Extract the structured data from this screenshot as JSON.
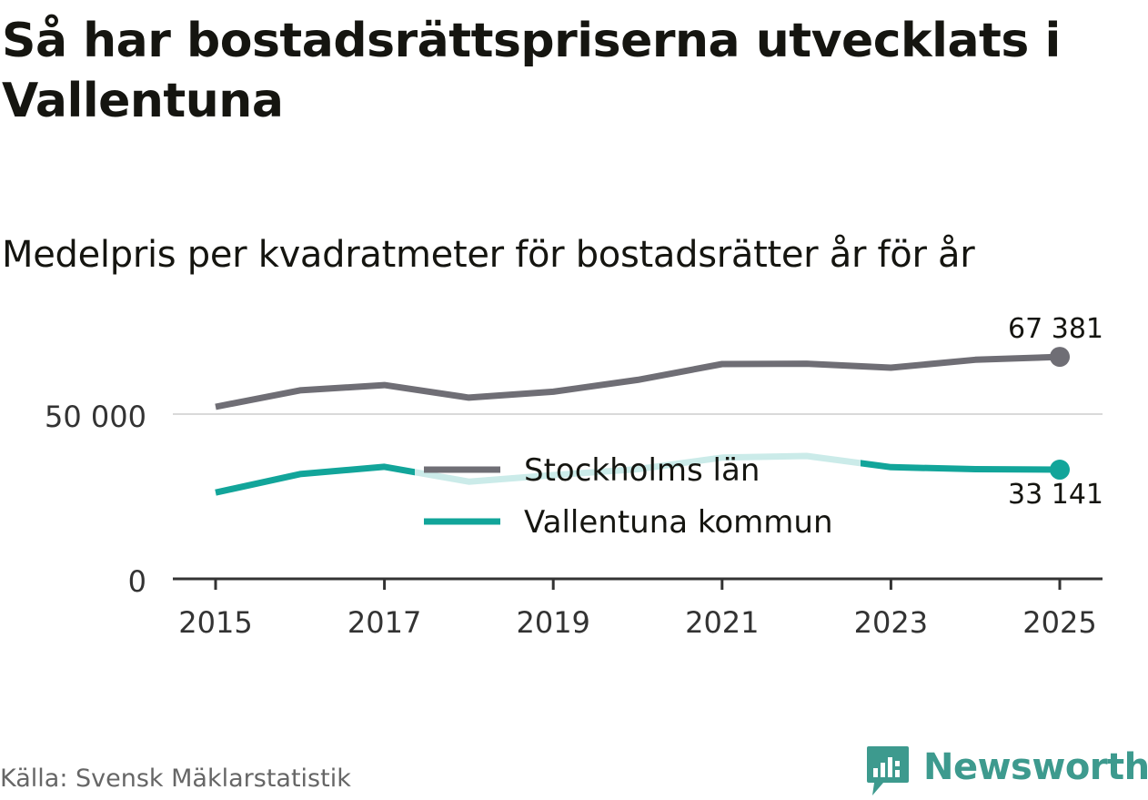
{
  "title": "Så har bostadsrättspriserna utvecklats i Vallentuna",
  "subtitle": "Medelpris per kvadratmeter för bostadsrätter år för år",
  "source": "Källa: Svensk Mäklarstatistik",
  "brand": {
    "name": "Newsworthy",
    "icon": "newsworthy-logo-icon",
    "color": "#3d9a8e"
  },
  "chart_data": {
    "type": "line",
    "title": "Så har bostadsrättspriserna utvecklats i Vallentuna",
    "subtitle": "Medelpris per kvadratmeter för bostadsrätter år för år",
    "x": [
      2015,
      2016,
      2017,
      2018,
      2019,
      2020,
      2021,
      2022,
      2023,
      2024,
      2025
    ],
    "xticks": [
      "2015",
      "2017",
      "2019",
      "2021",
      "2023",
      "2025"
    ],
    "yticks": [
      "0",
      "50 000"
    ],
    "ytick_values": [
      0,
      50000
    ],
    "xlim": [
      2014.5,
      2025.5
    ],
    "ylim": [
      0,
      75000
    ],
    "xlabel": "",
    "ylabel": "",
    "legend": {
      "placement": "center"
    },
    "series": [
      {
        "name": "Stockholms län",
        "color": "#6f6e75",
        "values": [
          52200,
          57200,
          58800,
          55000,
          56800,
          60400,
          65200,
          65300,
          64100,
          66500,
          67381
        ],
        "end_label": "67 381"
      },
      {
        "name": "Vallentuna kommun",
        "color": "#12a59a",
        "values": [
          26200,
          31800,
          34000,
          29500,
          31500,
          33300,
          36800,
          37300,
          33900,
          33300,
          33141
        ],
        "end_label": "33 141"
      }
    ]
  }
}
